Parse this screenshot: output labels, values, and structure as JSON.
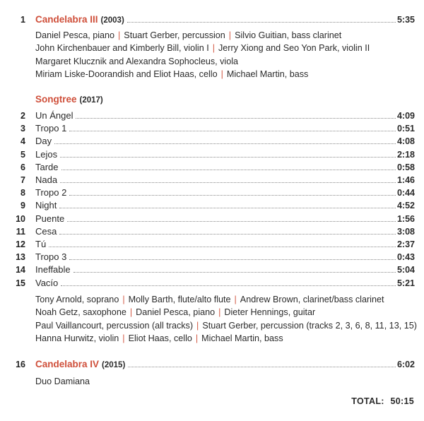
{
  "accent_color": "#cf4f3a",
  "pieces": [
    {
      "number": "1",
      "title": "Candelabra III",
      "year": "(2003)",
      "duration": "5:35",
      "performers": [
        [
          "Daniel Pesca, piano",
          "Stuart Gerber, percussion",
          "Silvio Guitian, bass clarinet"
        ],
        [
          "John Kirchenbauer and Kimberly Bill, violin I",
          "Jerry Xiong and Seo Yon Park, violin II"
        ],
        [
          "Margaret Klucznik and Alexandra Sophocleus, viola"
        ],
        [
          "Miriam Liske-Doorandish and Eliot Haas, cello",
          "Michael Martin, bass"
        ]
      ]
    }
  ],
  "songtree": {
    "title": "Songtree",
    "year": "(2017)",
    "tracks": [
      {
        "number": "2",
        "title": "Un Ángel",
        "duration": "4:09"
      },
      {
        "number": "3",
        "title": "Tropo 1",
        "duration": "0:51"
      },
      {
        "number": "4",
        "title": "Day",
        "duration": "4:08"
      },
      {
        "number": "5",
        "title": "Lejos",
        "duration": "2:18"
      },
      {
        "number": "6",
        "title": "Tarde",
        "duration": "0:58"
      },
      {
        "number": "7",
        "title": "Nada",
        "duration": "1:46"
      },
      {
        "number": "8",
        "title": "Tropo 2",
        "duration": "0:44"
      },
      {
        "number": "9",
        "title": "Night",
        "duration": "4:52"
      },
      {
        "number": "10",
        "title": "Puente",
        "duration": "1:56"
      },
      {
        "number": "11",
        "title": "Cesa",
        "duration": "3:08"
      },
      {
        "number": "12",
        "title": "Tú",
        "duration": "2:37"
      },
      {
        "number": "13",
        "title": "Tropo 3",
        "duration": "0:43"
      },
      {
        "number": "14",
        "title": "Ineffable",
        "duration": "5:04"
      },
      {
        "number": "15",
        "title": "Vacío",
        "duration": "5:21"
      }
    ],
    "performers": [
      [
        "Tony Arnold, soprano",
        "Molly Barth, flute/alto flute",
        "Andrew Brown, clarinet/bass clarinet"
      ],
      [
        "Noah Getz, saxophone",
        "Daniel Pesca, piano",
        "Dieter Hennings, guitar"
      ],
      [
        "Paul Vaillancourt, percussion (all tracks)",
        "Stuart Gerber, percussion (tracks 2, 3, 6, 8, 11, 13, 15)"
      ],
      [
        "Hanna Hurwitz, violin",
        "Eliot Haas, cello",
        "Michael Martin, bass"
      ]
    ]
  },
  "final_piece": {
    "number": "16",
    "title": "Candelabra IV",
    "year": "(2015)",
    "duration": "6:02",
    "performers": [
      [
        "Duo Damiana"
      ]
    ]
  },
  "total": {
    "label": "TOTAL:",
    "value": "50:15"
  }
}
